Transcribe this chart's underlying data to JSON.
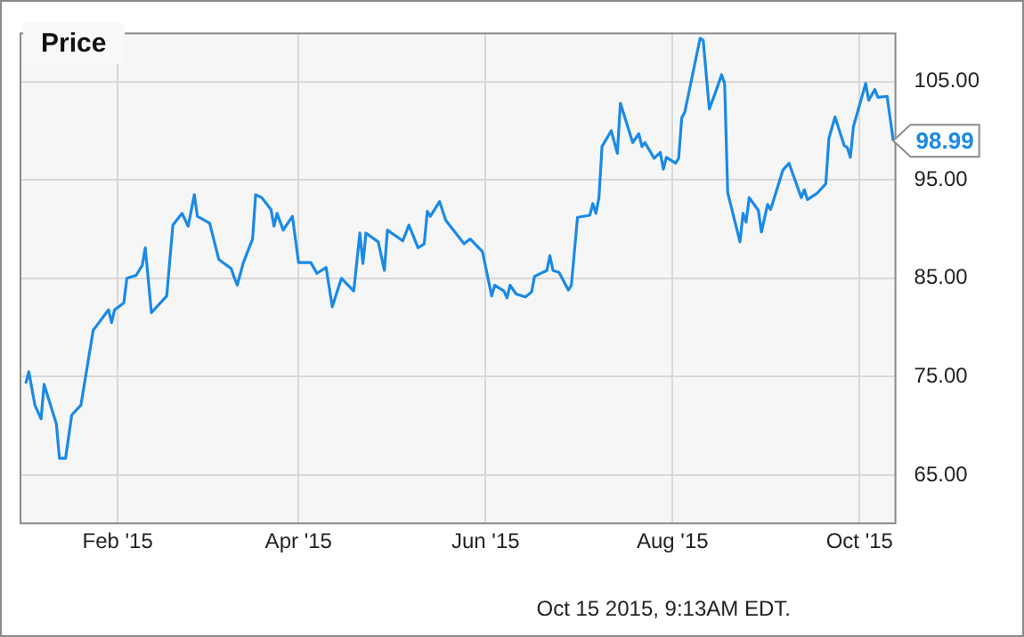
{
  "chart_data": {
    "type": "line",
    "title": "Price",
    "x": [
      "2015-01-02",
      "2015-01-03",
      "2015-01-05",
      "2015-01-07",
      "2015-01-08",
      "2015-01-12",
      "2015-01-13",
      "2015-01-15",
      "2015-01-17",
      "2015-01-20",
      "2015-01-24",
      "2015-01-29",
      "2015-01-30",
      "2015-01-31",
      "2015-02-03",
      "2015-02-04",
      "2015-02-07",
      "2015-02-09",
      "2015-02-10",
      "2015-02-12",
      "2015-02-17",
      "2015-02-19",
      "2015-02-22",
      "2015-02-24",
      "2015-02-26",
      "2015-02-27",
      "2015-03-03",
      "2015-03-06",
      "2015-03-10",
      "2015-03-11",
      "2015-03-12",
      "2015-03-14",
      "2015-03-17",
      "2015-03-18",
      "2015-03-20",
      "2015-03-23",
      "2015-03-24",
      "2015-03-25",
      "2015-03-27",
      "2015-03-30",
      "2015-04-01",
      "2015-04-05",
      "2015-04-07",
      "2015-04-10",
      "2015-04-12",
      "2015-04-15",
      "2015-04-19",
      "2015-04-21",
      "2015-04-22",
      "2015-04-23",
      "2015-04-27",
      "2015-04-29",
      "2015-04-30",
      "2015-05-05",
      "2015-05-07",
      "2015-05-10",
      "2015-05-12",
      "2015-05-13",
      "2015-05-14",
      "2015-05-17",
      "2015-05-19",
      "2015-05-25",
      "2015-05-27",
      "2015-05-31",
      "2015-06-03",
      "2015-06-04",
      "2015-06-07",
      "2015-06-08",
      "2015-06-09",
      "2015-06-11",
      "2015-06-14",
      "2015-06-16",
      "2015-06-17",
      "2015-06-21",
      "2015-06-22",
      "2015-06-23",
      "2015-06-25",
      "2015-06-28",
      "2015-06-29",
      "2015-07-01",
      "2015-07-05",
      "2015-07-06",
      "2015-07-07",
      "2015-07-08",
      "2015-07-09",
      "2015-07-12",
      "2015-07-14",
      "2015-07-15",
      "2015-07-19",
      "2015-07-21",
      "2015-07-22",
      "2015-07-23",
      "2015-07-26",
      "2015-07-28",
      "2015-07-29",
      "2015-07-30",
      "2015-08-02",
      "2015-08-03",
      "2015-08-04",
      "2015-08-05",
      "2015-08-10",
      "2015-08-11",
      "2015-08-13",
      "2015-08-15",
      "2015-08-17",
      "2015-08-18",
      "2015-08-19",
      "2015-08-23",
      "2015-08-24",
      "2015-08-25",
      "2015-08-26",
      "2015-08-29",
      "2015-08-30",
      "2015-09-01",
      "2015-09-02",
      "2015-09-06",
      "2015-09-08",
      "2015-09-12",
      "2015-09-13",
      "2015-09-14",
      "2015-09-17",
      "2015-09-20",
      "2015-09-21",
      "2015-09-23",
      "2015-09-26",
      "2015-09-27",
      "2015-09-28",
      "2015-09-29",
      "2015-10-03",
      "2015-10-04",
      "2015-10-06",
      "2015-10-07",
      "2015-10-10",
      "2015-10-12"
    ],
    "series": [
      {
        "color": "#1a8ae6",
        "values": [
          74.3,
          75.5,
          72.1,
          70.7,
          74.2,
          70.2,
          66.7,
          66.7,
          71.1,
          72.1,
          79.7,
          81.8,
          80.5,
          81.8,
          82.5,
          85.0,
          85.3,
          86.3,
          88.1,
          81.5,
          83.2,
          90.4,
          91.6,
          90.3,
          93.5,
          91.3,
          90.6,
          86.9,
          86.0,
          85.1,
          84.3,
          86.6,
          89.0,
          93.5,
          93.2,
          92.0,
          90.3,
          91.6,
          89.9,
          91.3,
          86.6,
          86.6,
          85.5,
          86.1,
          82.1,
          85.0,
          83.7,
          89.6,
          86.5,
          89.6,
          88.7,
          85.8,
          89.9,
          88.8,
          90.4,
          88.1,
          88.5,
          91.8,
          91.3,
          92.8,
          90.9,
          88.5,
          89.0,
          87.7,
          83.2,
          84.3,
          83.7,
          83.0,
          84.3,
          83.4,
          83.1,
          83.6,
          85.2,
          85.8,
          87.3,
          85.8,
          85.6,
          83.8,
          84.3,
          91.2,
          91.4,
          92.6,
          91.6,
          93.2,
          98.4,
          100.0,
          97.7,
          102.8,
          98.8,
          99.7,
          98.4,
          98.8,
          97.2,
          97.8,
          96.1,
          97.3,
          96.7,
          97.2,
          101.3,
          101.9,
          109.4,
          109.2,
          102.2,
          103.9,
          105.7,
          104.8,
          93.7,
          88.7,
          91.6,
          90.7,
          93.2,
          91.9,
          89.7,
          92.5,
          92.0,
          96.0,
          96.7,
          93.2,
          94.0,
          93.0,
          93.6,
          94.6,
          99.2,
          101.4,
          98.5,
          98.3,
          97.3,
          100.4,
          104.8,
          103.1,
          104.2,
          103.4,
          103.5,
          98.99
        ]
      }
    ],
    "xlim": [
      "2014-12-31",
      "2015-10-13"
    ],
    "xticks": [
      {
        "value": "2015-02-01",
        "label": "Feb '15"
      },
      {
        "value": "2015-04-01",
        "label": "Apr '15"
      },
      {
        "value": "2015-06-01",
        "label": "Jun '15"
      },
      {
        "value": "2015-08-01",
        "label": "Aug '15"
      },
      {
        "value": "2015-10-01",
        "label": "Oct '15"
      }
    ],
    "ylim": [
      60,
      110
    ],
    "yticks": [
      {
        "value": 65,
        "label": "65.00"
      },
      {
        "value": 75,
        "label": "75.00"
      },
      {
        "value": 85,
        "label": "85.00"
      },
      {
        "value": 95,
        "label": "95.00"
      },
      {
        "value": 105,
        "label": "105.00"
      }
    ],
    "grid": true,
    "marker": "none",
    "line_style": "solid",
    "annotations": [
      {
        "text": "98.99",
        "x": "2015-10-12",
        "y": 98.99
      },
      "Oct 15 2015, 9:13AM EDT."
    ]
  }
}
